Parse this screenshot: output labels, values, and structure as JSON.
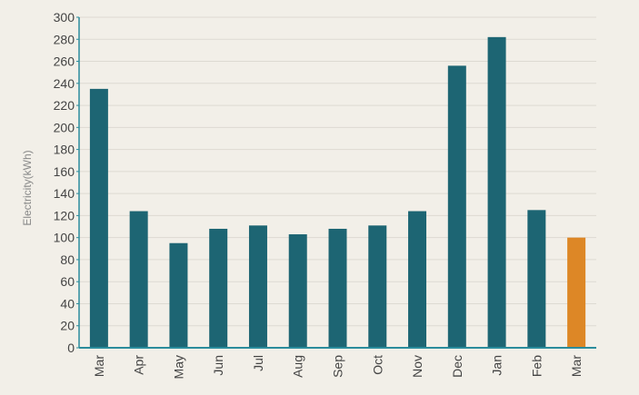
{
  "chart_data": {
    "type": "bar",
    "title": "",
    "xlabel": "",
    "ylabel": "Electricity(kWh)",
    "categories": [
      "Mar",
      "Apr",
      "May",
      "Jun",
      "Jul",
      "Aug",
      "Sep",
      "Oct",
      "Nov",
      "Dec",
      "Jan",
      "Feb",
      "Mar"
    ],
    "values": [
      235,
      124,
      95,
      108,
      111,
      103,
      108,
      111,
      124,
      256,
      282,
      125,
      100
    ],
    "highlight_index": 12,
    "ylim": [
      0,
      300
    ],
    "ytick_step": 20,
    "yticks": [
      "0",
      "20",
      "40",
      "60",
      "80",
      "100",
      "120",
      "140",
      "160",
      "180",
      "200",
      "220",
      "240",
      "260",
      "280",
      "300"
    ],
    "grid": true,
    "legend": "none",
    "colors": {
      "bar": "#1d6573",
      "highlight": "#dd8726",
      "axis": "#2a8c9c",
      "grid": "#dddad2",
      "background": "#f2efe8"
    }
  }
}
